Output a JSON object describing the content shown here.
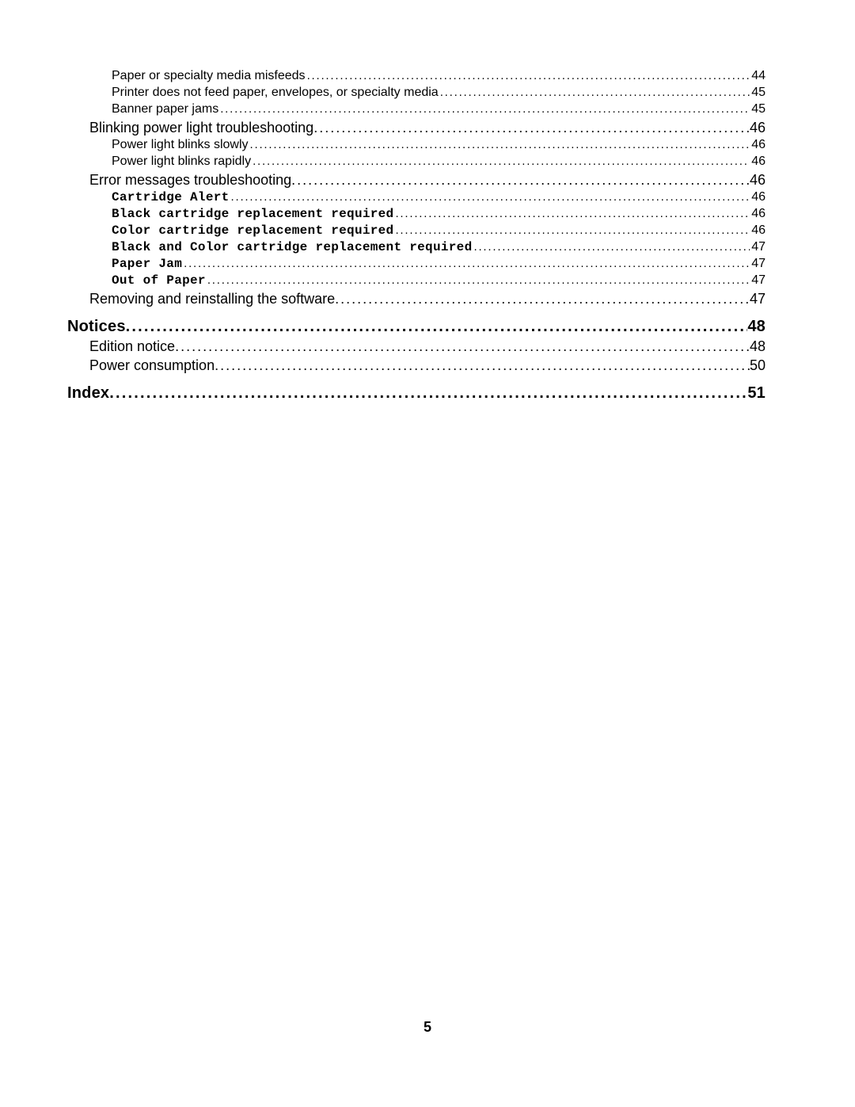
{
  "page_number": "5",
  "text_color": "#000000",
  "background_color": "#ffffff",
  "entries": [
    {
      "level": 3,
      "mono": false,
      "label": "Paper or specialty media misfeeds",
      "page": "44"
    },
    {
      "level": 3,
      "mono": false,
      "label": "Printer does not feed paper, envelopes, or specialty media",
      "page": "45"
    },
    {
      "level": 3,
      "mono": false,
      "label": "Banner paper jams",
      "page": "45"
    },
    {
      "level": 2,
      "mono": false,
      "label": "Blinking power light troubleshooting",
      "page": "46"
    },
    {
      "level": 3,
      "mono": false,
      "label": "Power light blinks slowly",
      "page": "46"
    },
    {
      "level": 3,
      "mono": false,
      "label": "Power light blinks rapidly",
      "page": "46"
    },
    {
      "level": 2,
      "mono": false,
      "label": "Error messages troubleshooting",
      "page": "46"
    },
    {
      "level": 3,
      "mono": true,
      "label": "Cartridge Alert",
      "page": "46"
    },
    {
      "level": 3,
      "mono": true,
      "label": "Black cartridge replacement required",
      "page": "46"
    },
    {
      "level": 3,
      "mono": true,
      "label": "Color cartridge replacement required",
      "page": "46"
    },
    {
      "level": 3,
      "mono": true,
      "label": "Black and Color cartridge replacement required",
      "page": "47"
    },
    {
      "level": 3,
      "mono": true,
      "label": "Paper Jam",
      "page": "47"
    },
    {
      "level": 3,
      "mono": true,
      "label": "Out of Paper",
      "page": "47"
    },
    {
      "level": 2,
      "mono": false,
      "label": "Removing and reinstalling the software",
      "page": "47"
    },
    {
      "level": 1,
      "mono": false,
      "label": "Notices",
      "page": "48"
    },
    {
      "level": 2,
      "mono": false,
      "label": "Edition notice",
      "page": "48"
    },
    {
      "level": 2,
      "mono": false,
      "label": "Power consumption",
      "page": "50"
    },
    {
      "level": 1,
      "mono": false,
      "label": "Index",
      "page": "51"
    }
  ]
}
